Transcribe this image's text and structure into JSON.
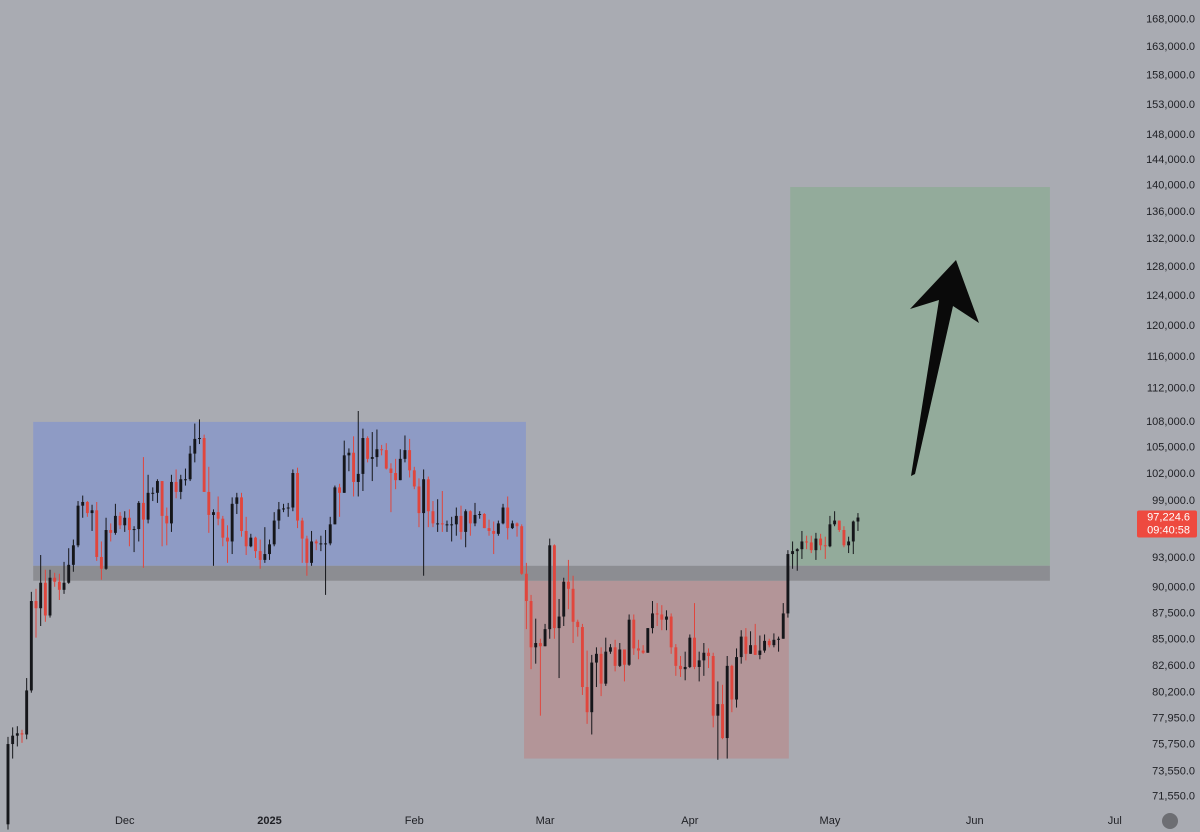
{
  "chart_data": {
    "type": "candlestick",
    "log_scale": true,
    "up_color": "#15161a",
    "down_color": "#e0463d",
    "ylim": [
      70500,
      171700
    ],
    "yticks": [
      {
        "value": 168000,
        "label": "168,000.0"
      },
      {
        "value": 163000,
        "label": "163,000.0"
      },
      {
        "value": 158000,
        "label": "158,000.0"
      },
      {
        "value": 153000,
        "label": "153,000.0"
      },
      {
        "value": 148000,
        "label": "148,000.0"
      },
      {
        "value": 144000,
        "label": "144,000.0"
      },
      {
        "value": 140000,
        "label": "140,000.0"
      },
      {
        "value": 136000,
        "label": "136,000.0"
      },
      {
        "value": 132000,
        "label": "132,000.0"
      },
      {
        "value": 128000,
        "label": "128,000.0"
      },
      {
        "value": 124000,
        "label": "124,000.0"
      },
      {
        "value": 120000,
        "label": "120,000.0"
      },
      {
        "value": 116000,
        "label": "116,000.0"
      },
      {
        "value": 112000,
        "label": "112,000.0"
      },
      {
        "value": 108000,
        "label": "108,000.0"
      },
      {
        "value": 105000,
        "label": "105,000.0"
      },
      {
        "value": 102000,
        "label": "102,000.0"
      },
      {
        "value": 99000,
        "label": "99,000.0"
      },
      {
        "value": 93000,
        "label": "93,000.0"
      },
      {
        "value": 90000,
        "label": "90,000.0"
      },
      {
        "value": 87500,
        "label": "87,500.0"
      },
      {
        "value": 85000,
        "label": "85,000.0"
      },
      {
        "value": 82600,
        "label": "82,600.0"
      },
      {
        "value": 80200,
        "label": "80,200.0"
      },
      {
        "value": 77950,
        "label": "77,950.0"
      },
      {
        "value": 75750,
        "label": "75,750.0"
      },
      {
        "value": 73550,
        "label": "73,550.0"
      },
      {
        "value": 71550,
        "label": "71,550.0"
      }
    ],
    "xlim": [
      -1.71,
      240.25
    ],
    "xticks": [
      {
        "value": 25,
        "label": "Dec"
      },
      {
        "value": 56,
        "label": "2025"
      },
      {
        "value": 87,
        "label": "Feb"
      },
      {
        "value": 115,
        "label": "Mar"
      },
      {
        "value": 146,
        "label": "Apr"
      },
      {
        "value": 176,
        "label": "May"
      },
      {
        "value": 207,
        "label": "Jun"
      },
      {
        "value": 237,
        "label": "Jul"
      }
    ],
    "zones": [
      {
        "color": "#8e9bc5",
        "x": [
          5.4,
          110.9
        ],
        "y": [
          92200,
          108000
        ]
      },
      {
        "color": "#b39598",
        "x": [
          110.5,
          167.2
        ],
        "y": [
          74600,
          90700
        ]
      },
      {
        "color": "#93ab9b",
        "x": [
          167.5,
          223.1
        ],
        "y": [
          92200,
          139800
        ]
      },
      {
        "color": "#8c8d92",
        "x": [
          5.4,
          223.1
        ],
        "y": [
          90700,
          92200
        ]
      }
    ],
    "last_price_label": "97,224.6",
    "countdown": "09:40:58",
    "last_price_color": "#ee4a3f",
    "candles": [
      [
        69400,
        76400,
        69000,
        75800
      ],
      [
        75800,
        77200,
        74600,
        76500
      ],
      [
        76500,
        77300,
        75600,
        76700
      ],
      [
        76700,
        77000,
        75900,
        76600
      ],
      [
        76600,
        81500,
        76200,
        80400
      ],
      [
        80400,
        89600,
        80200,
        88700
      ],
      [
        88700,
        89900,
        85200,
        88000
      ],
      [
        88000,
        93300,
        86300,
        90500
      ],
      [
        90500,
        91800,
        86700,
        87300
      ],
      [
        87300,
        91800,
        87100,
        91000
      ],
      [
        91000,
        91500,
        90100,
        90600
      ],
      [
        90600,
        91400,
        88800,
        89800
      ],
      [
        89800,
        92600,
        89400,
        90500
      ],
      [
        90500,
        94000,
        90400,
        92300
      ],
      [
        92300,
        94900,
        91600,
        94300
      ],
      [
        94300,
        99000,
        94100,
        98500
      ],
      [
        98500,
        99600,
        97200,
        98900
      ],
      [
        98900,
        99000,
        97300,
        97700
      ],
      [
        97700,
        98600,
        95800,
        98000
      ],
      [
        98000,
        98900,
        92700,
        93100
      ],
      [
        93100,
        94700,
        90800,
        91900
      ],
      [
        91900,
        97200,
        91800,
        95900
      ],
      [
        95900,
        96600,
        94700,
        95600
      ],
      [
        95600,
        98700,
        95400,
        97400
      ],
      [
        97400,
        97800,
        96000,
        96400
      ],
      [
        96400,
        97900,
        95700,
        97200
      ],
      [
        97200,
        98100,
        94200,
        95900
      ],
      [
        95900,
        96300,
        93600,
        96000
      ],
      [
        96000,
        99000,
        94700,
        98800
      ],
      [
        98800,
        103900,
        92000,
        97000
      ],
      [
        97000,
        101900,
        96600,
        99900
      ],
      [
        99900,
        100500,
        99000,
        99900
      ],
      [
        99900,
        101400,
        98800,
        101200
      ],
      [
        101200,
        101200,
        94200,
        97400
      ],
      [
        97400,
        98300,
        94300,
        96600
      ],
      [
        96600,
        101900,
        95700,
        101100
      ],
      [
        101100,
        102500,
        99300,
        100000
      ],
      [
        100000,
        101900,
        99200,
        101400
      ],
      [
        101400,
        102600,
        100700,
        101400
      ],
      [
        101400,
        105200,
        101200,
        104300
      ],
      [
        104300,
        107800,
        103300,
        106000
      ],
      [
        106000,
        108300,
        105400,
        106100
      ],
      [
        106100,
        106500,
        100000,
        100000
      ],
      [
        100000,
        102800,
        95600,
        97500
      ],
      [
        97500,
        98100,
        92200,
        97800
      ],
      [
        97800,
        99500,
        96400,
        97100
      ],
      [
        97100,
        97400,
        94200,
        95100
      ],
      [
        95100,
        96400,
        92500,
        94700
      ],
      [
        94700,
        99400,
        93400,
        98700
      ],
      [
        98700,
        99900,
        97600,
        99400
      ],
      [
        99400,
        99900,
        95200,
        95800
      ],
      [
        95800,
        97300,
        93300,
        94200
      ],
      [
        94200,
        95500,
        94100,
        95100
      ],
      [
        95100,
        95200,
        93000,
        93700
      ],
      [
        93700,
        94900,
        91900,
        92800
      ],
      [
        92800,
        96200,
        92500,
        93400
      ],
      [
        93400,
        94900,
        92800,
        94400
      ],
      [
        94400,
        97800,
        94200,
        96900
      ],
      [
        96900,
        98900,
        96000,
        98100
      ],
      [
        98100,
        98700,
        97800,
        98200
      ],
      [
        98200,
        98800,
        97300,
        98300
      ],
      [
        98300,
        102500,
        97900,
        102100
      ],
      [
        102100,
        102700,
        96100,
        96900
      ],
      [
        96900,
        97200,
        92500,
        95000
      ],
      [
        95000,
        95300,
        91200,
        92500
      ],
      [
        92500,
        95800,
        92200,
        94700
      ],
      [
        94700,
        94900,
        93800,
        94500
      ],
      [
        94500,
        95300,
        93700,
        94500
      ],
      [
        94500,
        95900,
        89300,
        94500
      ],
      [
        94500,
        97300,
        94300,
        96500
      ],
      [
        96500,
        100700,
        96500,
        100500
      ],
      [
        100500,
        100900,
        97300,
        99900
      ],
      [
        99900,
        105800,
        99900,
        104100
      ],
      [
        104100,
        104900,
        102300,
        104400
      ],
      [
        104400,
        106300,
        99500,
        101100
      ],
      [
        101100,
        109300,
        99500,
        102000
      ],
      [
        102000,
        107200,
        100100,
        106100
      ],
      [
        106100,
        106300,
        103300,
        103700
      ],
      [
        103700,
        106800,
        101200,
        103900
      ],
      [
        103900,
        107100,
        102800,
        104800
      ],
      [
        104800,
        105300,
        104100,
        104700
      ],
      [
        104700,
        105500,
        102500,
        102600
      ],
      [
        102600,
        103200,
        97800,
        102100
      ],
      [
        102100,
        103700,
        100300,
        101300
      ],
      [
        101300,
        104800,
        101300,
        103700
      ],
      [
        103700,
        106400,
        103300,
        104700
      ],
      [
        104700,
        106000,
        101600,
        102400
      ],
      [
        102400,
        102800,
        100300,
        100600
      ],
      [
        100600,
        101500,
        96200,
        97700
      ],
      [
        97700,
        102500,
        91200,
        101400
      ],
      [
        101400,
        101700,
        96200,
        97900
      ],
      [
        97900,
        99000,
        96200,
        96600
      ],
      [
        96600,
        99200,
        95700,
        96600
      ],
      [
        96600,
        100100,
        95700,
        96500
      ],
      [
        96500,
        96900,
        95700,
        96500
      ],
      [
        96500,
        97300,
        94700,
        96500
      ],
      [
        96500,
        98300,
        95300,
        97400
      ],
      [
        97400,
        98500,
        94900,
        95700
      ],
      [
        95700,
        98100,
        94100,
        97900
      ],
      [
        97900,
        98000,
        95300,
        96600
      ],
      [
        96600,
        98800,
        96300,
        97500
      ],
      [
        97500,
        97900,
        97100,
        97600
      ],
      [
        97600,
        97700,
        96100,
        96100
      ],
      [
        96100,
        97000,
        95300,
        95800
      ],
      [
        95800,
        96800,
        93400,
        95500
      ],
      [
        95500,
        96900,
        95300,
        96600
      ],
      [
        96600,
        98700,
        96500,
        98300
      ],
      [
        98300,
        99500,
        94900,
        96100
      ],
      [
        96100,
        96900,
        96000,
        96600
      ],
      [
        96600,
        96700,
        95200,
        96300
      ],
      [
        96300,
        96500,
        91300,
        91400
      ],
      [
        91400,
        92500,
        86000,
        88700
      ],
      [
        88700,
        89300,
        82300,
        84300
      ],
      [
        84300,
        87000,
        82800,
        84700
      ],
      [
        84700,
        85100,
        78200,
        84400
      ],
      [
        84400,
        86500,
        84400,
        86000
      ],
      [
        86000,
        95000,
        85100,
        94300
      ],
      [
        94300,
        94400,
        85100,
        86100
      ],
      [
        86100,
        88900,
        81500,
        87200
      ],
      [
        87200,
        91000,
        86300,
        90600
      ],
      [
        90600,
        92800,
        87900,
        89900
      ],
      [
        89900,
        91200,
        84700,
        86700
      ],
      [
        86700,
        86900,
        85300,
        86200
      ],
      [
        86200,
        86500,
        80000,
        80700
      ],
      [
        80700,
        84000,
        77500,
        78500
      ],
      [
        78500,
        83600,
        76600,
        82900
      ],
      [
        82900,
        84300,
        80700,
        83700
      ],
      [
        83700,
        84300,
        79900,
        81000
      ],
      [
        81000,
        85200,
        80800,
        83900
      ],
      [
        83900,
        84600,
        83700,
        84300
      ],
      [
        84300,
        85000,
        82100,
        82600
      ],
      [
        82600,
        84700,
        82500,
        84100
      ],
      [
        84100,
        84100,
        81200,
        82700
      ],
      [
        82700,
        87400,
        82600,
        86900
      ],
      [
        86900,
        87400,
        83600,
        84200
      ],
      [
        84200,
        85000,
        83200,
        84000
      ],
      [
        84000,
        84500,
        83700,
        83800
      ],
      [
        83800,
        86100,
        83800,
        86100
      ],
      [
        86100,
        88700,
        85600,
        87500
      ],
      [
        87500,
        88500,
        86300,
        87400
      ],
      [
        87400,
        88300,
        85900,
        86900
      ],
      [
        86900,
        87800,
        85900,
        87200
      ],
      [
        87200,
        87500,
        83700,
        84300
      ],
      [
        84300,
        84600,
        81700,
        82600
      ],
      [
        82600,
        83500,
        81600,
        82300
      ],
      [
        82300,
        83900,
        81300,
        82500
      ],
      [
        82500,
        85500,
        82400,
        85200
      ],
      [
        85200,
        88500,
        82300,
        82500
      ],
      [
        82500,
        83900,
        81200,
        83100
      ],
      [
        83100,
        84700,
        81700,
        83800
      ],
      [
        83800,
        84200,
        82400,
        83500
      ],
      [
        83500,
        83800,
        77200,
        78200
      ],
      [
        78200,
        81200,
        74500,
        79200
      ],
      [
        79200,
        80900,
        76200,
        76300
      ],
      [
        76300,
        83500,
        74600,
        82600
      ],
      [
        82600,
        82700,
        78500,
        79600
      ],
      [
        79600,
        84200,
        78900,
        83400
      ],
      [
        83400,
        85900,
        82800,
        85300
      ],
      [
        85300,
        86100,
        83100,
        83700
      ],
      [
        83700,
        85800,
        83700,
        84500
      ],
      [
        84500,
        86500,
        83600,
        83600
      ],
      [
        83600,
        85400,
        83200,
        84000
      ],
      [
        84000,
        85500,
        83800,
        84900
      ],
      [
        84900,
        85100,
        84300,
        84500
      ],
      [
        84500,
        85600,
        84300,
        85000
      ],
      [
        85000,
        85300,
        83900,
        85100
      ],
      [
        85100,
        88500,
        85100,
        87500
      ],
      [
        87500,
        93800,
        87100,
        93400
      ],
      [
        93400,
        94700,
        91900,
        93700
      ],
      [
        93700,
        94000,
        91700,
        93900
      ],
      [
        93900,
        95800,
        92900,
        94700
      ],
      [
        94700,
        95300,
        93900,
        94600
      ],
      [
        94600,
        95300,
        93500,
        93800
      ],
      [
        93800,
        95600,
        92800,
        95000
      ],
      [
        95000,
        95500,
        93800,
        94300
      ],
      [
        94300,
        95200,
        92900,
        94200
      ],
      [
        94200,
        97400,
        94100,
        96500
      ],
      [
        96500,
        97900,
        96300,
        96900
      ],
      [
        96900,
        96900,
        95700,
        95900
      ],
      [
        95900,
        96300,
        94100,
        94300
      ],
      [
        94300,
        95200,
        93500,
        94700
      ],
      [
        94700,
        96900,
        93400,
        96800
      ],
      [
        96800,
        97700,
        95800,
        97224.6
      ]
    ]
  }
}
